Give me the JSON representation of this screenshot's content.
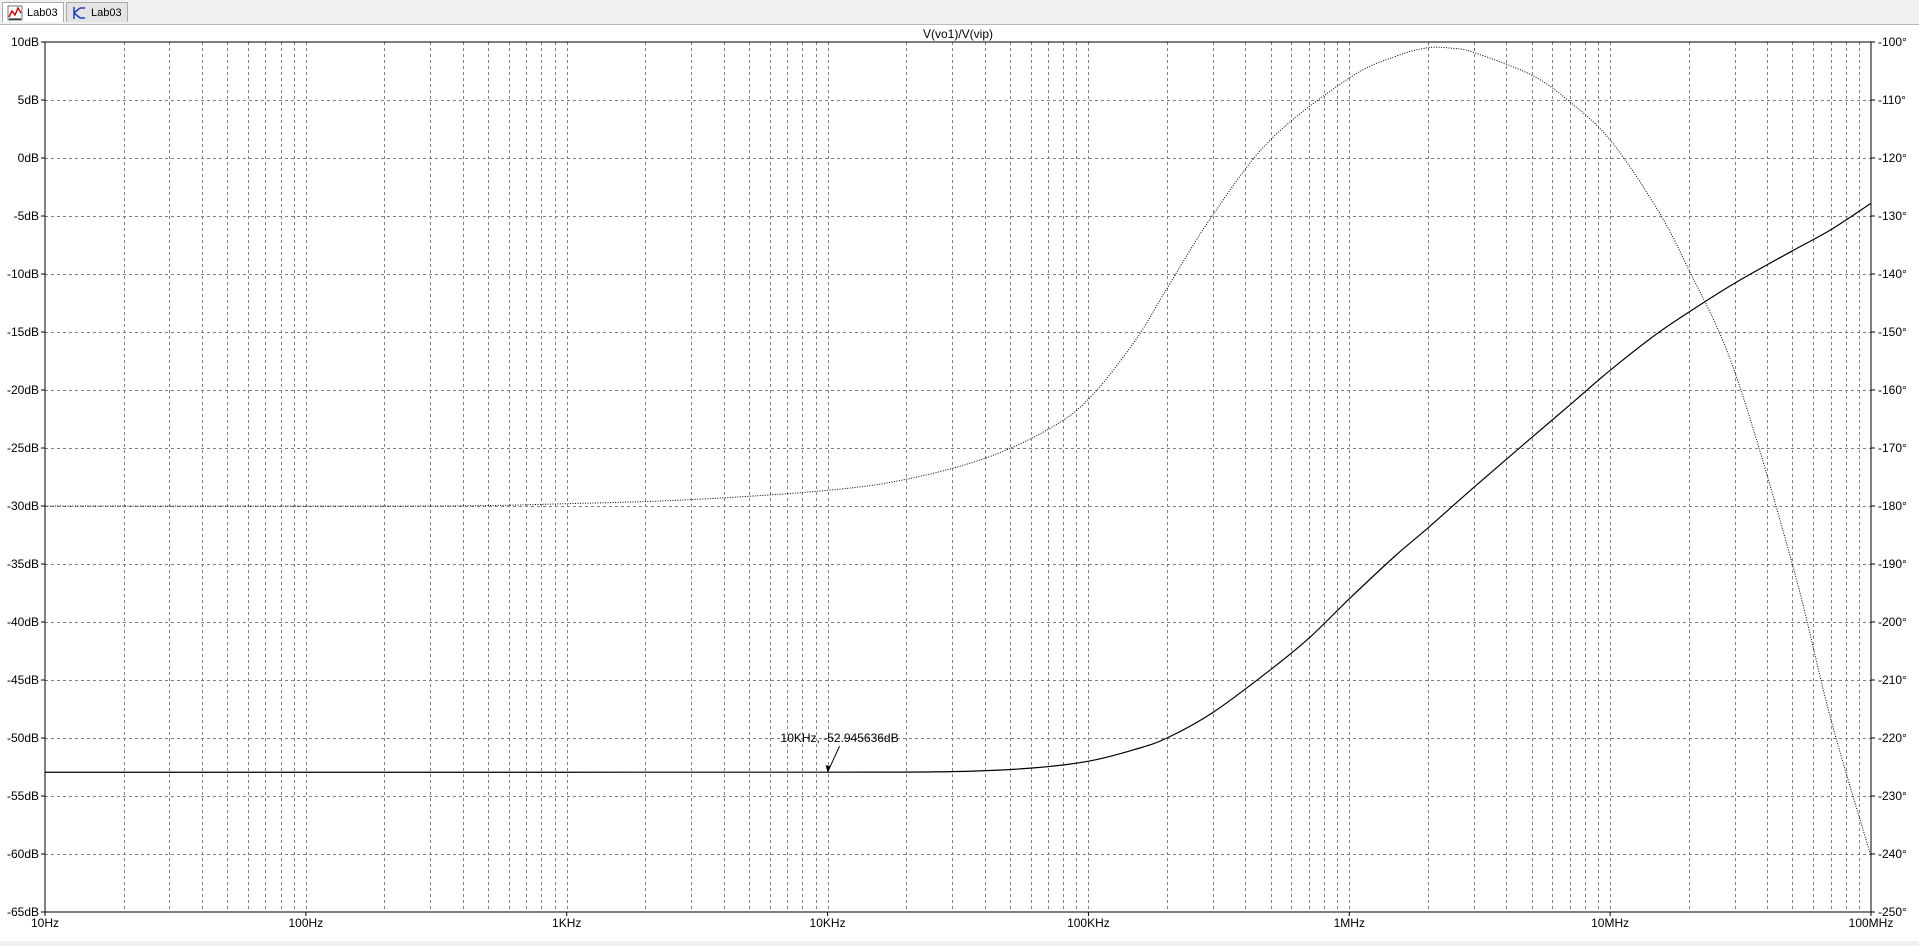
{
  "tabs": [
    {
      "label": "Lab03",
      "icon": "waveform-viewer-icon",
      "active": true
    },
    {
      "label": "Lab03",
      "icon": "schematic-icon",
      "active": false
    }
  ],
  "chart_data": {
    "type": "line",
    "title": "V(vo1)/V(vip)",
    "x_scale": "log",
    "xlim": [
      10,
      100000000
    ],
    "x_ticks": [
      {
        "value": 10,
        "label": "10Hz"
      },
      {
        "value": 100,
        "label": "100Hz"
      },
      {
        "value": 1000,
        "label": "1KHz"
      },
      {
        "value": 10000,
        "label": "10KHz"
      },
      {
        "value": 100000,
        "label": "100KHz"
      },
      {
        "value": 1000000,
        "label": "1MHz"
      },
      {
        "value": 10000000,
        "label": "10MHz"
      },
      {
        "value": 100000000,
        "label": "100MHz"
      }
    ],
    "ylim_left": [
      -65,
      10
    ],
    "y_ticks_left": [
      {
        "value": 10,
        "label": "10dB"
      },
      {
        "value": 5,
        "label": "5dB"
      },
      {
        "value": 0,
        "label": "0dB"
      },
      {
        "value": -5,
        "label": "-5dB"
      },
      {
        "value": -10,
        "label": "-10dB"
      },
      {
        "value": -15,
        "label": "-15dB"
      },
      {
        "value": -20,
        "label": "-20dB"
      },
      {
        "value": -25,
        "label": "-25dB"
      },
      {
        "value": -30,
        "label": "-30dB"
      },
      {
        "value": -35,
        "label": "-35dB"
      },
      {
        "value": -40,
        "label": "-40dB"
      },
      {
        "value": -45,
        "label": "-45dB"
      },
      {
        "value": -50,
        "label": "-50dB"
      },
      {
        "value": -55,
        "label": "-55dB"
      },
      {
        "value": -60,
        "label": "-60dB"
      },
      {
        "value": -65,
        "label": "-65dB"
      }
    ],
    "ylim_right": [
      -250,
      -100
    ],
    "y_ticks_right": [
      {
        "value": -100,
        "label": "-100°"
      },
      {
        "value": -110,
        "label": "-110°"
      },
      {
        "value": -120,
        "label": "-120°"
      },
      {
        "value": -130,
        "label": "-130°"
      },
      {
        "value": -140,
        "label": "-140°"
      },
      {
        "value": -150,
        "label": "-150°"
      },
      {
        "value": -160,
        "label": "-160°"
      },
      {
        "value": -170,
        "label": "-170°"
      },
      {
        "value": -180,
        "label": "-180°"
      },
      {
        "value": -190,
        "label": "-190°"
      },
      {
        "value": -200,
        "label": "-200°"
      },
      {
        "value": -210,
        "label": "-210°"
      },
      {
        "value": -220,
        "label": "-220°"
      },
      {
        "value": -230,
        "label": "-230°"
      },
      {
        "value": -240,
        "label": "-240°"
      },
      {
        "value": -250,
        "label": "-250°"
      }
    ],
    "grid": true,
    "series": [
      {
        "axis": "left",
        "style": "solid",
        "color": "#000000",
        "points": [
          [
            10,
            -52.95
          ],
          [
            1000,
            -52.95
          ],
          [
            10000,
            -52.945636
          ],
          [
            30000,
            -52.9
          ],
          [
            60000,
            -52.6
          ],
          [
            100000,
            -52.0
          ],
          [
            150000,
            -51.0
          ],
          [
            200000,
            -50.0
          ],
          [
            300000,
            -47.8
          ],
          [
            500000,
            -44.1
          ],
          [
            700000,
            -41.4
          ],
          [
            1000000,
            -38.0
          ],
          [
            1500000,
            -34.3
          ],
          [
            2000000,
            -31.9
          ],
          [
            3000000,
            -28.4
          ],
          [
            5000000,
            -24.1
          ],
          [
            7000000,
            -21.3
          ],
          [
            10000000,
            -18.3
          ],
          [
            15000000,
            -15.2
          ],
          [
            20000000,
            -13.3
          ],
          [
            30000000,
            -10.8
          ],
          [
            50000000,
            -8.0
          ],
          [
            70000000,
            -6.2
          ],
          [
            100000000,
            -3.9
          ]
        ]
      },
      {
        "axis": "right",
        "style": "dotted",
        "color": "#000000",
        "points": [
          [
            10,
            -180.0
          ],
          [
            300,
            -180.0
          ],
          [
            1000,
            -179.6
          ],
          [
            3000,
            -178.9
          ],
          [
            10000,
            -177.3
          ],
          [
            20000,
            -175.4
          ],
          [
            40000,
            -171.8
          ],
          [
            70000,
            -166.8
          ],
          [
            100000,
            -161.6
          ],
          [
            150000,
            -151.7
          ],
          [
            200000,
            -142.5
          ],
          [
            300000,
            -129.8
          ],
          [
            500000,
            -116.8
          ],
          [
            1000000,
            -106.2
          ],
          [
            1500000,
            -102.5
          ],
          [
            2000000,
            -101.0
          ],
          [
            2500000,
            -101.1
          ],
          [
            3000000,
            -101.8
          ],
          [
            5000000,
            -105.7
          ],
          [
            7000000,
            -110.3
          ],
          [
            10000000,
            -116.9
          ],
          [
            15000000,
            -128.5
          ],
          [
            20000000,
            -139.2
          ],
          [
            30000000,
            -156.8
          ],
          [
            50000000,
            -190.1
          ],
          [
            70000000,
            -216.6
          ],
          [
            100000000,
            -240.4
          ]
        ]
      }
    ],
    "annotations": [
      {
        "text": "10KHz, -52.945636dB",
        "x": 10000,
        "y": -52.945636,
        "axis": "left"
      }
    ]
  }
}
